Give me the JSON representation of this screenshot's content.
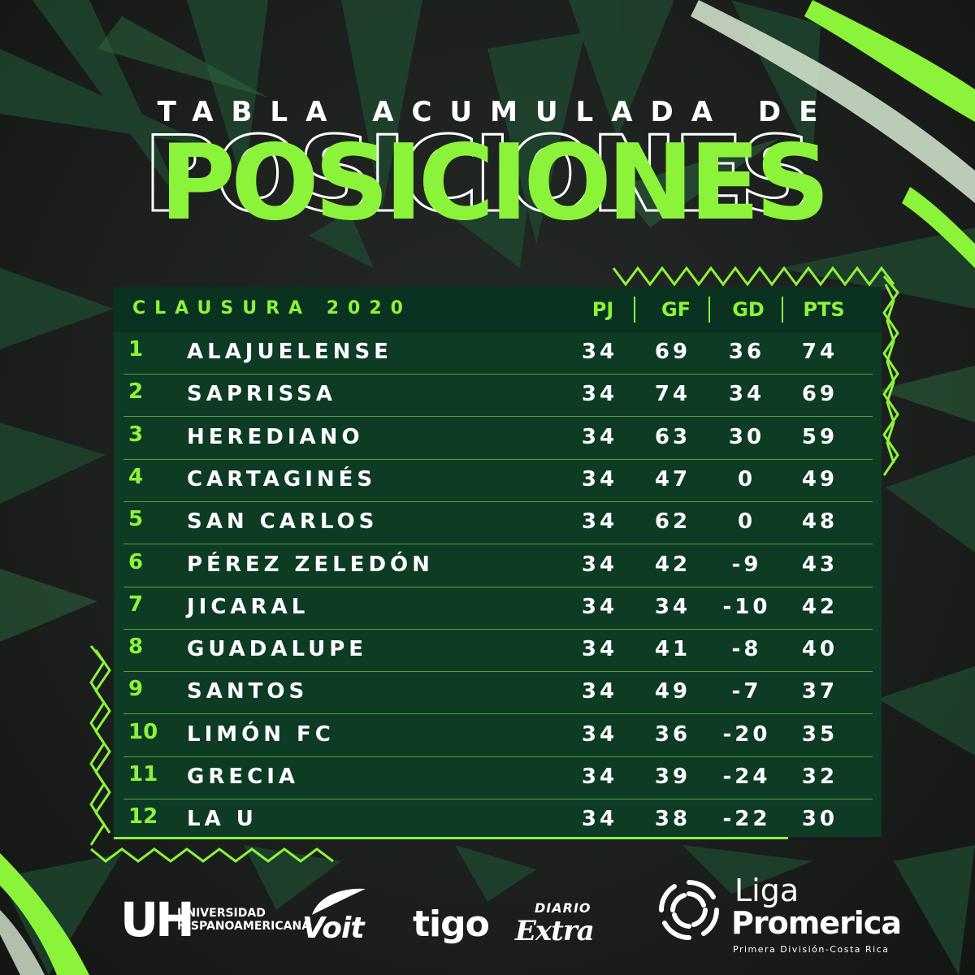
{
  "header": {
    "kicker": "TABLA ACUMULADA DE",
    "title": "POSICIONES"
  },
  "table": {
    "season": "CLAUSURA 2020",
    "columns": [
      "PJ",
      "GF",
      "GD",
      "PTS"
    ],
    "rows": [
      {
        "pos": "1",
        "team": "ALAJUELENSE",
        "pj": "34",
        "gf": "69",
        "gd": "36",
        "pts": "74"
      },
      {
        "pos": "2",
        "team": "SAPRISSA",
        "pj": "34",
        "gf": "74",
        "gd": "34",
        "pts": "69"
      },
      {
        "pos": "3",
        "team": "HEREDIANO",
        "pj": "34",
        "gf": "63",
        "gd": "30",
        "pts": "59"
      },
      {
        "pos": "4",
        "team": "CARTAGINÉS",
        "pj": "34",
        "gf": "47",
        "gd": "0",
        "pts": "49"
      },
      {
        "pos": "5",
        "team": "SAN CARLOS",
        "pj": "34",
        "gf": "62",
        "gd": "0",
        "pts": "48"
      },
      {
        "pos": "6",
        "team": "PÉREZ ZELEDÓN",
        "pj": "34",
        "gf": "42",
        "gd": "-9",
        "pts": "43"
      },
      {
        "pos": "7",
        "team": "JICARAL",
        "pj": "34",
        "gf": "34",
        "gd": "-10",
        "pts": "42"
      },
      {
        "pos": "8",
        "team": "GUADALUPE",
        "pj": "34",
        "gf": "41",
        "gd": "-8",
        "pts": "40"
      },
      {
        "pos": "9",
        "team": "SANTOS",
        "pj": "34",
        "gf": "49",
        "gd": "-7",
        "pts": "37"
      },
      {
        "pos": "10",
        "team": "LIMÓN FC",
        "pj": "34",
        "gf": "36",
        "gd": "-20",
        "pts": "35"
      },
      {
        "pos": "11",
        "team": "GRECIA",
        "pj": "34",
        "gf": "39",
        "gd": "-24",
        "pts": "32"
      },
      {
        "pos": "12",
        "team": "LA U",
        "pj": "34",
        "gf": "38",
        "gd": "-22",
        "pts": "30"
      }
    ]
  },
  "sponsors": {
    "uh_mark": "UH",
    "uh_line1": "UNIVERSIDAD",
    "uh_line2": "HISPANOAMERICANA",
    "voit": "Voit",
    "tigo": "tigo",
    "diario": "DIARIO",
    "extra": "Extra",
    "liga": "Liga",
    "promerica": "Promerica",
    "liga_sub": "Primera División-Costa Rica"
  },
  "colors": {
    "accent": "#8bf43a",
    "panel": "#0d3b24",
    "panel_header": "#0a3220",
    "background": "#1b1e1c"
  }
}
